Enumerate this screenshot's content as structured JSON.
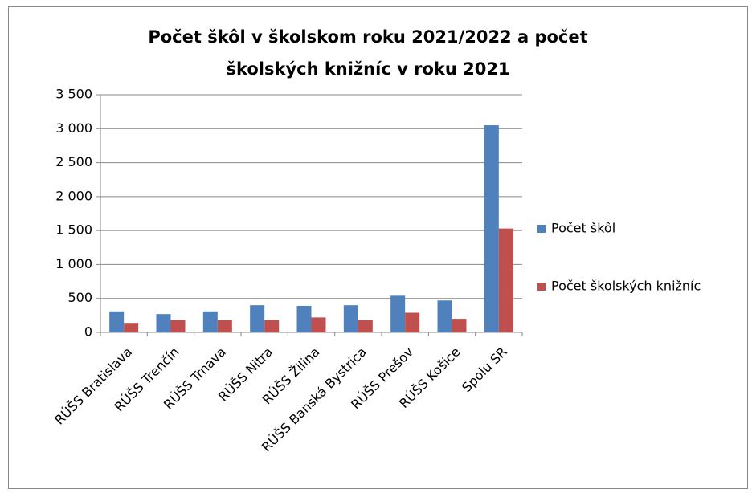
{
  "chart_data": {
    "type": "bar",
    "title": [
      "Počet škôl v školskom roku 2021/2022 a počet",
      "školských knižníc v roku 2021"
    ],
    "categories": [
      "RÚŠS Bratislava",
      "RÚŠS Trenčín",
      "RÚŠS Trnava",
      "RÚŠS Nitra",
      "RÚŠS Žilina",
      "RÚŠS Banská Bystrica",
      "RÚŠS Prešov",
      "RÚŠS Košice",
      "Spolu SR"
    ],
    "series": [
      {
        "name": "Počet škôl",
        "color": "#4f81bd",
        "values": [
          310,
          270,
          310,
          400,
          390,
          400,
          540,
          470,
          3050
        ]
      },
      {
        "name": "Počet školských knižníc",
        "color": "#c0504d",
        "values": [
          140,
          180,
          180,
          180,
          220,
          180,
          290,
          200,
          1530
        ]
      }
    ],
    "ylim": [
      0,
      3500
    ],
    "yticks": [
      0,
      500,
      {
        "value": 1000,
        "label": "1 000"
      },
      {
        "value": 1500,
        "label": "1 500"
      },
      {
        "value": 2000,
        "label": "2 000"
      },
      {
        "value": 2500,
        "label": "2 500"
      },
      {
        "value": 3000,
        "label": "3 000"
      },
      {
        "value": 3500,
        "label": "3 500"
      }
    ],
    "grid": true,
    "legend": "right"
  }
}
